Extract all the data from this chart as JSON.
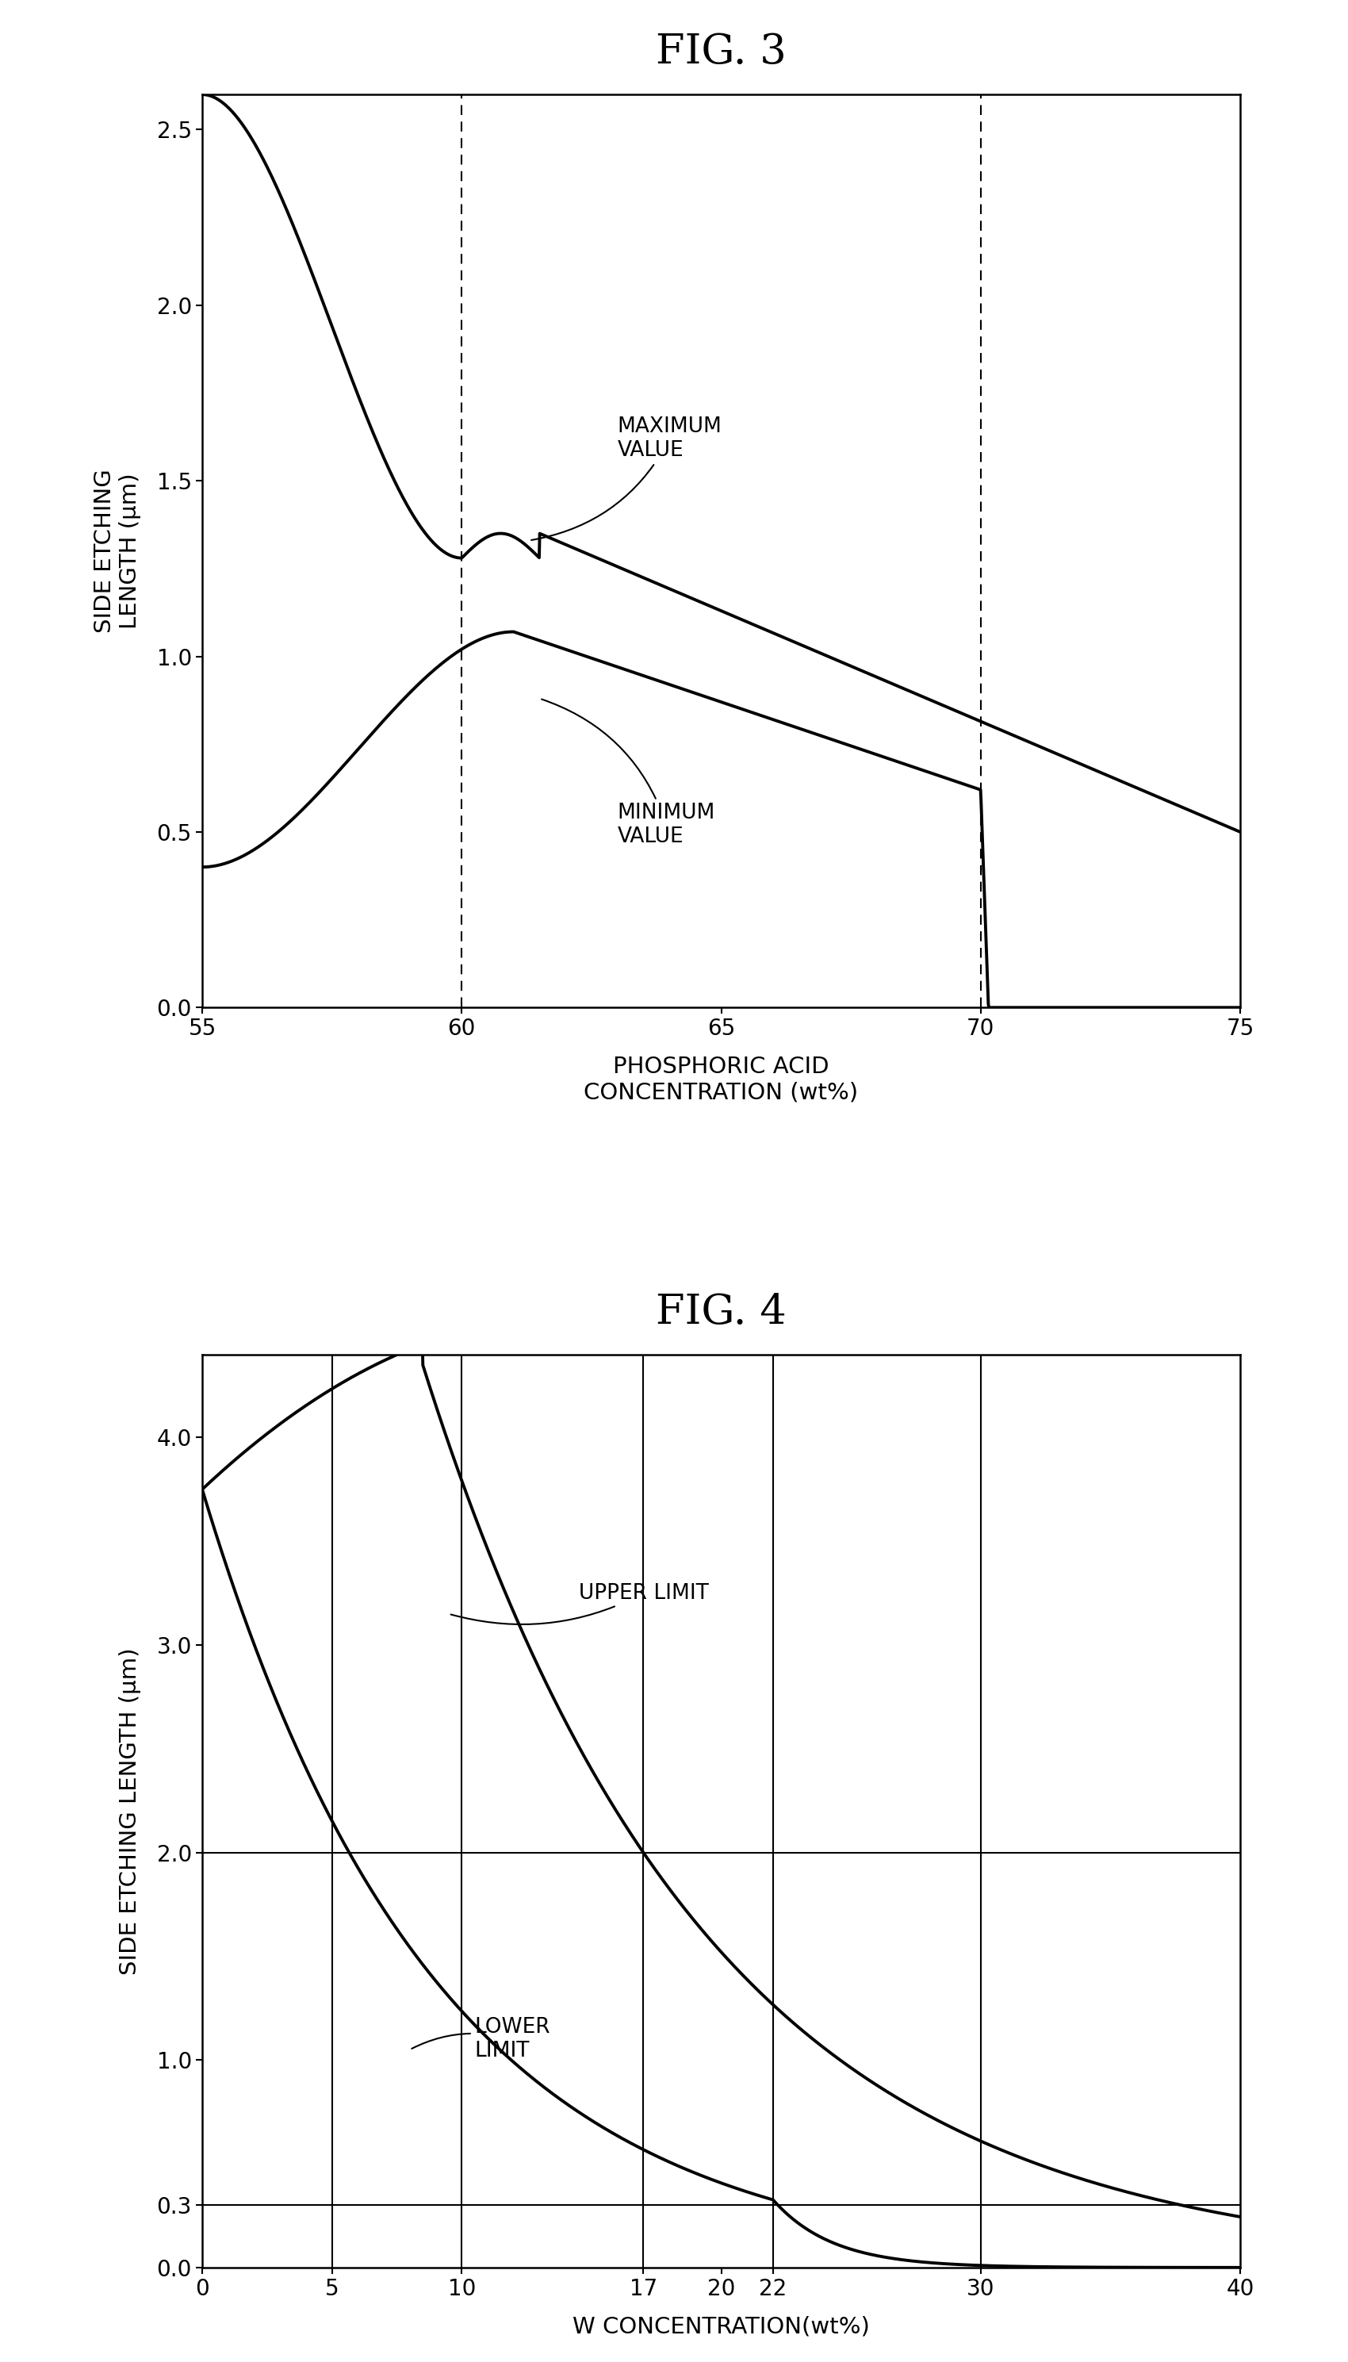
{
  "fig3_title": "FIG. 3",
  "fig4_title": "FIG. 4",
  "fig3_xlabel": "PHOSPHORIC ACID\nCONCENTRATION (wt%)",
  "fig3_ylabel": "SIDE ETCHING\nLENGTH (μm)",
  "fig4_xlabel": "W CONCENTRATION(wt%)",
  "fig4_ylabel": "SIDE ETCHING LENGTH (μm)",
  "fig3_xlim": [
    55,
    75
  ],
  "fig3_ylim": [
    0,
    2.6
  ],
  "fig3_xticks": [
    55,
    60,
    65,
    70,
    75
  ],
  "fig3_yticks": [
    0,
    0.5,
    1.0,
    1.5,
    2.0,
    2.5
  ],
  "fig4_xlim": [
    0,
    40
  ],
  "fig4_ylim": [
    0,
    4.4
  ],
  "fig4_xticks": [
    0,
    5,
    10,
    17,
    20,
    22,
    30,
    40
  ],
  "fig4_yticks": [
    0,
    0.3,
    1.0,
    2.0,
    3.0,
    4.0
  ],
  "fig3_vline1": 60,
  "fig3_vline2": 70,
  "fig4_hline1": 2.0,
  "fig4_hline2": 0.3,
  "fig4_vline1": 5,
  "fig4_vline2": 10,
  "fig4_vline3": 17,
  "fig4_vline4": 22,
  "fig4_vline5": 30,
  "background_color": "#ffffff",
  "line_color": "#000000"
}
